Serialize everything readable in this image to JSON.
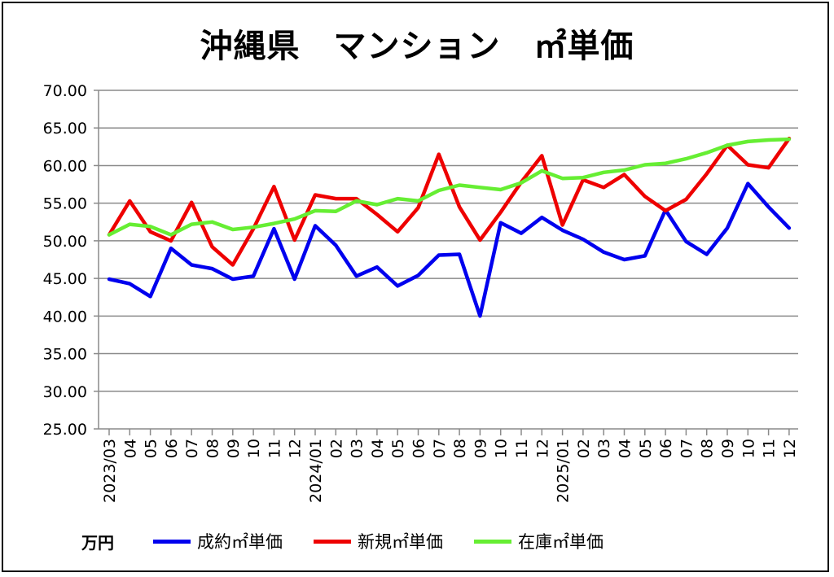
{
  "chart_data": {
    "type": "line",
    "title": "沖縄県　マンション　㎡単価",
    "unit_label": "万円",
    "ylim": [
      25,
      70
    ],
    "y_ticks": [
      "70.00",
      "65.00",
      "60.00",
      "55.00",
      "50.00",
      "45.00",
      "40.00",
      "35.00",
      "30.00",
      "25.00"
    ],
    "y_tick_values": [
      70,
      65,
      60,
      55,
      50,
      45,
      40,
      35,
      30,
      25
    ],
    "categories": [
      "2023/03",
      "04",
      "05",
      "06",
      "07",
      "08",
      "09",
      "10",
      "11",
      "12",
      "2024/01",
      "02",
      "03",
      "04",
      "05",
      "06",
      "07",
      "08",
      "09",
      "10",
      "11",
      "12",
      "2025/01",
      "02",
      "03",
      "04",
      "05",
      "06",
      "07",
      "08",
      "09",
      "10",
      "11",
      "12"
    ],
    "series": [
      {
        "name": "成約㎡単価",
        "color": "#0000ee",
        "values": [
          44.9,
          44.3,
          42.6,
          49.0,
          46.8,
          46.3,
          44.9,
          45.3,
          51.6,
          44.9,
          52.0,
          49.4,
          45.3,
          46.5,
          44.0,
          45.4,
          48.1,
          48.2,
          40.0,
          52.4,
          51.0,
          53.1,
          51.4,
          50.2,
          48.5,
          47.5,
          48.0,
          54.1,
          49.9,
          48.2,
          51.7,
          57.6,
          54.5,
          51.7
        ]
      },
      {
        "name": "新規㎡単価",
        "color": "#ee0000",
        "values": [
          50.8,
          55.3,
          51.2,
          50.0,
          55.1,
          49.2,
          46.8,
          51.6,
          57.2,
          50.1,
          56.1,
          55.6,
          55.6,
          53.5,
          51.2,
          54.4,
          61.5,
          54.5,
          50.1,
          53.8,
          57.8,
          61.3,
          52.1,
          58.1,
          57.1,
          58.8,
          55.9,
          54.0,
          55.5,
          58.9,
          62.7,
          60.1,
          59.7,
          63.6
        ]
      },
      {
        "name": "在庫㎡単価",
        "color": "#66ee33",
        "values": [
          50.8,
          52.2,
          51.9,
          50.8,
          52.2,
          52.5,
          51.5,
          51.8,
          52.3,
          52.9,
          54.0,
          53.9,
          55.3,
          54.8,
          55.6,
          55.3,
          56.7,
          57.4,
          57.1,
          56.8,
          57.7,
          59.3,
          58.3,
          58.4,
          59.1,
          59.4,
          60.1,
          60.3,
          60.9,
          61.7,
          62.7,
          63.2,
          63.4,
          63.5
        ]
      }
    ]
  }
}
